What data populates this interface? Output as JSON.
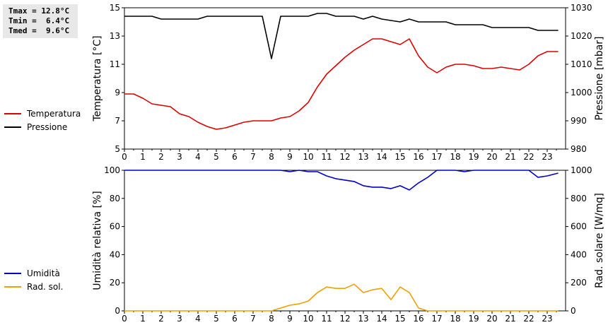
{
  "stats": {
    "tmax": "Tmax = 12.8°C",
    "tmin": "Tmin =  6.4°C",
    "tmed": "Tmed =  9.6°C"
  },
  "chart_data": [
    {
      "type": "line",
      "ylabel_left": "Temperatura [°C]",
      "ylabel_right": "Pressione [mbar]",
      "ylim_left": [
        5,
        15
      ],
      "ylim_right": [
        980,
        1030
      ],
      "yticks_left": [
        5,
        7,
        9,
        11,
        13,
        15
      ],
      "yticks_right": [
        980,
        990,
        1000,
        1010,
        1020,
        1030
      ],
      "xlim": [
        0,
        24
      ],
      "xticks": [
        "0",
        "1",
        "2",
        "3",
        "4",
        "5",
        "6",
        "7",
        "8",
        "9",
        "10",
        "11",
        "12",
        "13",
        "14",
        "15",
        "16",
        "17",
        "18",
        "19",
        "20",
        "21",
        "22",
        "23"
      ],
      "series": [
        {
          "name": "Temperatura",
          "color": "#dd0000",
          "axis": "left",
          "x": [
            0,
            0.5,
            1,
            1.5,
            2,
            2.5,
            3,
            3.5,
            4,
            4.5,
            5,
            5.5,
            6,
            6.5,
            7,
            7.5,
            8,
            8.5,
            9,
            9.5,
            10,
            10.5,
            11,
            11.5,
            12,
            12.5,
            13,
            13.5,
            14,
            14.5,
            15,
            15.5,
            16,
            16.5,
            17,
            17.5,
            18,
            18.5,
            19,
            19.5,
            20,
            20.5,
            21,
            21.5,
            22,
            22.5,
            23,
            23.6
          ],
          "values": [
            8.9,
            8.9,
            8.6,
            8.2,
            8.1,
            8.0,
            7.5,
            7.3,
            6.9,
            6.6,
            6.4,
            6.5,
            6.7,
            6.9,
            7.0,
            7.0,
            7.0,
            7.2,
            7.3,
            7.7,
            8.3,
            9.4,
            10.3,
            10.9,
            11.5,
            12.0,
            12.4,
            12.8,
            12.8,
            12.6,
            12.4,
            12.8,
            11.6,
            10.8,
            10.4,
            10.8,
            11.0,
            11.0,
            10.9,
            10.7,
            10.7,
            10.8,
            10.7,
            10.6,
            11.0,
            11.6,
            11.9,
            11.9
          ]
        },
        {
          "name": "Pressione",
          "color": "#000000",
          "axis": "right",
          "x": [
            0,
            1.5,
            2,
            4,
            4.5,
            7.5,
            8.0,
            8.5,
            10,
            10.5,
            11,
            11.5,
            12.5,
            13,
            13.5,
            14,
            15,
            15.5,
            16,
            17.5,
            18,
            19.5,
            20,
            22,
            22.5,
            23.6
          ],
          "values": [
            1027,
            1027,
            1026,
            1026,
            1027,
            1027,
            1012,
            1027,
            1027,
            1028,
            1028,
            1027,
            1027,
            1026,
            1027,
            1026,
            1025,
            1026,
            1025,
            1025,
            1024,
            1024,
            1023,
            1023,
            1022,
            1022
          ]
        }
      ]
    },
    {
      "type": "line",
      "ylabel_left": "Umidità relativa [%]",
      "ylabel_right": "Rad. solare [W/mq]",
      "ylim_left": [
        0,
        100
      ],
      "ylim_right": [
        0,
        1000
      ],
      "yticks_left": [
        0,
        20,
        40,
        60,
        80,
        100
      ],
      "yticks_right": [
        0,
        200,
        400,
        600,
        800,
        1000
      ],
      "xlim": [
        0,
        24
      ],
      "xticks": [
        "0",
        "1",
        "2",
        "3",
        "4",
        "5",
        "6",
        "7",
        "8",
        "9",
        "10",
        "11",
        "12",
        "13",
        "14",
        "15",
        "16",
        "17",
        "18",
        "19",
        "20",
        "21",
        "22",
        "23"
      ],
      "series": [
        {
          "name": "Umidità",
          "color": "#0000cc",
          "axis": "left",
          "x": [
            0,
            8.5,
            9,
            9.5,
            10,
            10.5,
            11,
            11.5,
            12,
            12.5,
            13,
            13.5,
            14,
            14.5,
            15,
            15.5,
            16,
            16.5,
            17,
            17.5,
            18,
            18.5,
            19,
            22,
            22.5,
            23,
            23.6
          ],
          "values": [
            100,
            100,
            99,
            100,
            99,
            99,
            96,
            94,
            93,
            92,
            89,
            88,
            88,
            87,
            89,
            86,
            91,
            95,
            100,
            100,
            100,
            99,
            100,
            100,
            95,
            96,
            98
          ]
        },
        {
          "name": "Rad. sol.",
          "color": "#f0a000",
          "axis": "right",
          "x": [
            0,
            8,
            8.5,
            9,
            9.5,
            10,
            10.5,
            11,
            11.5,
            12,
            12.5,
            13,
            13.5,
            14,
            14.5,
            15,
            15.5,
            16,
            16.5,
            23.6
          ],
          "values": [
            0,
            0,
            20,
            40,
            50,
            70,
            130,
            170,
            160,
            160,
            190,
            130,
            150,
            160,
            80,
            170,
            130,
            20,
            0,
            0
          ]
        }
      ]
    }
  ]
}
